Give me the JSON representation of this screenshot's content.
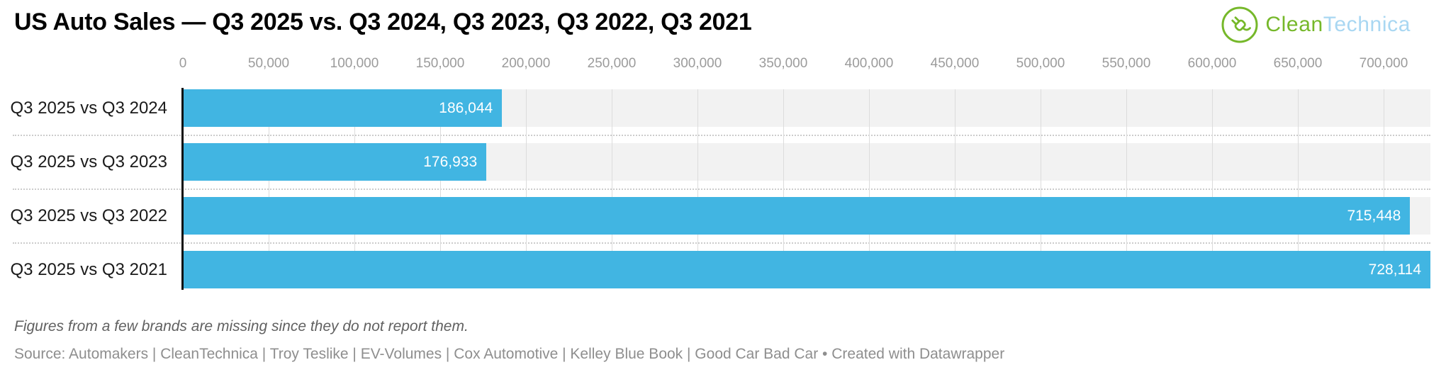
{
  "logo": {
    "clean": "Clean",
    "technica": "Technica",
    "green": "#76b82a",
    "light_blue": "#a9d7f2"
  },
  "chart_data": {
    "type": "bar",
    "orientation": "horizontal",
    "title": "US Auto Sales — Q3 2025 vs. Q3 2024, Q3 2023, Q3 2022, Q3 2021",
    "categories": [
      "Q3 2025 vs Q3 2024",
      "Q3 2025 vs Q3 2023",
      "Q3 2025 vs Q3 2022",
      "Q3 2025 vs Q3 2021"
    ],
    "values": [
      186044,
      176933,
      715448,
      728114
    ],
    "value_labels": [
      "186,044",
      "176,933",
      "715,448",
      "728,114"
    ],
    "x_ticks": [
      0,
      50000,
      100000,
      150000,
      200000,
      250000,
      300000,
      350000,
      400000,
      450000,
      500000,
      550000,
      600000,
      650000,
      700000
    ],
    "x_tick_labels": [
      "0",
      "50,000",
      "100,000",
      "150,000",
      "200,000",
      "250,000",
      "300,000",
      "350,000",
      "400,000",
      "450,000",
      "500,000",
      "550,000",
      "600,000",
      "650,000",
      "700,000"
    ],
    "xlim": [
      0,
      700000
    ],
    "grid": "vertical",
    "legend": "none",
    "bar_color": "#41b5e2",
    "row_background_color": "#f2f2f2",
    "value_label_color": "#ffffff"
  },
  "footnote": "Figures from a few brands are missing since they do not report them.",
  "source": "Source: Automakers | CleanTechnica | Troy Teslike | EV-Volumes | Cox Automotive | Kelley Blue Book | Good Car Bad Car • Created with Datawrapper"
}
